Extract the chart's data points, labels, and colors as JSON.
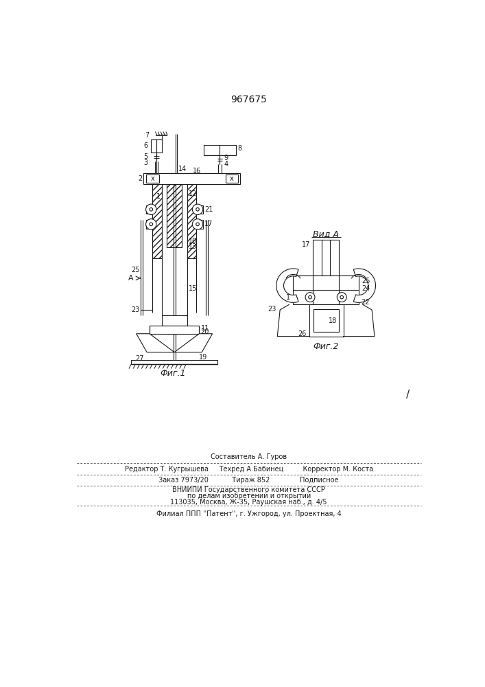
{
  "patent_number": "967675",
  "fig1_caption": "Фиг.1",
  "fig2_caption": "Фиг.2",
  "vid_a_label": "Вид А",
  "bg_color": "#ffffff",
  "line_color": "#1a1a1a",
  "footer_line1": "Составитель А. Гуров",
  "footer_line2": "Редактор Т. Кугрышева     Техред А.Бабинец         Корректор М. Коста",
  "footer_line3": "Заказ 7973/20           Тираж 852              Подписное",
  "footer_line4": "ВНИИПИ Государственного комитета СССР",
  "footer_line5": "по делам изобретений и открытий",
  "footer_line6": "113035, Москва, Ж-35, Раушская наб., д. 4/5",
  "footer_line7": "Филиал ППП ''Патент'', г. Ужгород, ул. Проектная, 4"
}
